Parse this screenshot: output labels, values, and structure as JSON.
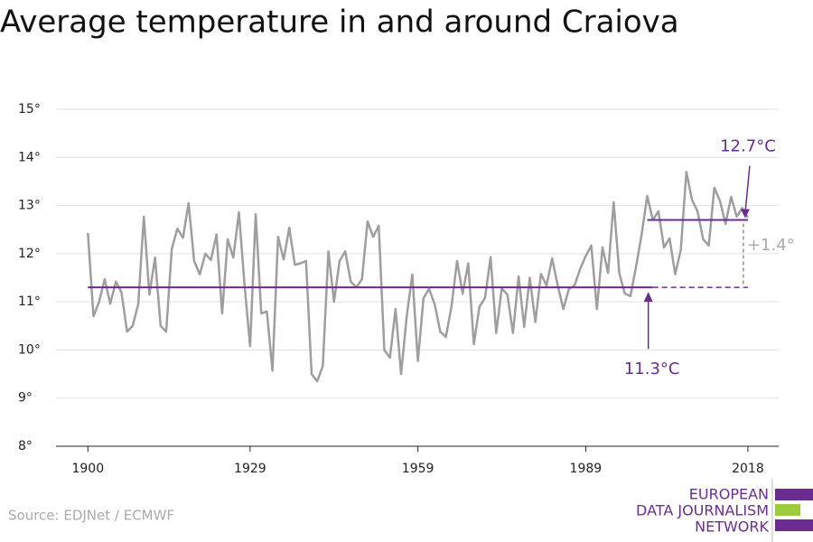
{
  "chart_data": {
    "type": "line",
    "title": "Average temperature in and around Craiova",
    "source": "Source: EDJNet / ECMWF",
    "logo": [
      "EUROPEAN",
      "DATA JOURNALISM",
      "NETWORK"
    ],
    "x": [
      1900,
      1901,
      1902,
      1903,
      1904,
      1905,
      1906,
      1907,
      1908,
      1909,
      1910,
      1911,
      1912,
      1913,
      1914,
      1915,
      1916,
      1917,
      1918,
      1919,
      1920,
      1921,
      1922,
      1923,
      1924,
      1925,
      1926,
      1927,
      1928,
      1929,
      1930,
      1931,
      1932,
      1933,
      1934,
      1935,
      1936,
      1937,
      1938,
      1939,
      1940,
      1941,
      1942,
      1943,
      1944,
      1945,
      1946,
      1947,
      1948,
      1949,
      1950,
      1951,
      1952,
      1953,
      1954,
      1955,
      1956,
      1957,
      1958,
      1959,
      1960,
      1961,
      1962,
      1963,
      1964,
      1965,
      1966,
      1967,
      1968,
      1969,
      1970,
      1971,
      1972,
      1973,
      1974,
      1975,
      1976,
      1977,
      1978,
      1979,
      1980,
      1981,
      1982,
      1983,
      1984,
      1985,
      1986,
      1987,
      1988,
      1989,
      1990,
      1991,
      1992,
      1993,
      1994,
      1995,
      1996,
      1997,
      1998,
      1999,
      2000,
      2001,
      2002,
      2003,
      2004,
      2005,
      2006,
      2007,
      2008,
      2009,
      2010,
      2011,
      2012,
      2013,
      2014,
      2015,
      2016,
      2017,
      2018
    ],
    "series": [
      {
        "color": "#9e9e9e",
        "values": [
          12.43,
          10.7,
          11.0,
          11.47,
          10.96,
          11.42,
          11.2,
          10.38,
          10.5,
          10.95,
          12.77,
          11.15,
          11.92,
          10.5,
          10.38,
          12.1,
          12.52,
          12.33,
          13.05,
          11.85,
          11.57,
          12.0,
          11.87,
          12.4,
          10.76,
          12.3,
          11.92,
          12.86,
          11.36,
          10.08,
          12.82,
          10.76,
          10.8,
          9.57,
          12.35,
          11.88,
          12.54,
          11.77,
          11.8,
          11.85,
          9.5,
          9.35,
          9.67,
          12.05,
          11.0,
          11.85,
          12.05,
          11.42,
          11.3,
          11.47,
          12.67,
          12.35,
          12.58,
          10.0,
          9.84,
          10.85,
          9.5,
          10.7,
          11.57,
          9.77,
          11.08,
          11.27,
          10.95,
          10.38,
          10.27,
          10.9,
          11.85,
          11.17,
          11.8,
          10.12,
          10.9,
          11.08,
          11.93,
          10.35,
          11.28,
          11.15,
          10.35,
          11.53,
          10.48,
          11.5,
          10.58,
          11.58,
          11.34,
          11.9,
          11.34,
          10.85,
          11.27,
          11.34,
          11.68,
          11.95,
          12.17,
          10.85,
          12.13,
          11.6,
          13.07,
          11.6,
          11.17,
          11.12,
          11.73,
          12.4,
          13.2,
          12.7,
          12.88,
          12.13,
          12.32,
          11.57,
          12.08,
          13.7,
          13.12,
          12.88,
          12.3,
          12.17,
          13.37,
          13.1,
          12.62,
          13.18,
          12.77,
          12.95,
          12.75
        ]
      }
    ],
    "references": [
      {
        "value": 11.3,
        "label": "11.3°C",
        "color": "#6a2c91",
        "x0": 1900,
        "x1": 2001,
        "x2": 2018
      },
      {
        "value": 12.7,
        "label": "12.7°C",
        "color": "#6a2c91",
        "x0": 2000,
        "x1": 2018
      }
    ],
    "difference": {
      "value": 1.4,
      "label": "+1.4°"
    },
    "xlim": [
      1894.3,
      2023.5
    ],
    "xticks": [
      1900,
      1929,
      1959,
      1989,
      2018
    ],
    "ylim": [
      8,
      15
    ],
    "yticks": [
      {
        "value": 8,
        "label": "8°"
      },
      {
        "value": 9,
        "label": "9°"
      },
      {
        "value": 10,
        "label": "10°"
      },
      {
        "value": 11,
        "label": "11°"
      },
      {
        "value": 12,
        "label": "12°"
      },
      {
        "value": 13,
        "label": "13°"
      },
      {
        "value": 14,
        "label": "14°"
      },
      {
        "value": 15,
        "label": "15°"
      }
    ],
    "grid": true
  }
}
